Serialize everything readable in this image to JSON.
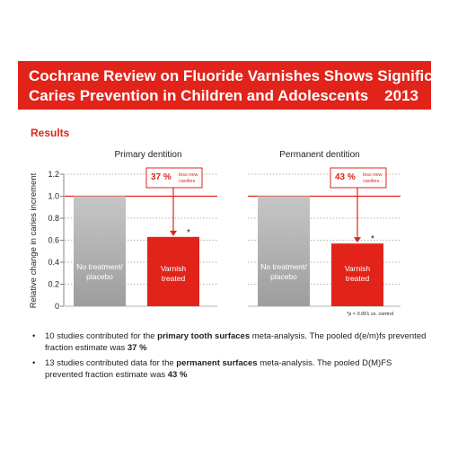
{
  "banner": {
    "title_line1": "Cochrane Review on Fluoride Varnishes Shows Significant",
    "title_line2": "Caries Prevention in Children and Adolescents",
    "year": "2013"
  },
  "section_title": "Results",
  "colors": {
    "accent": "#e2231a",
    "control_bar": "#9d9d9d",
    "text": "#222222"
  },
  "chart_data": [
    {
      "type": "bar",
      "title": "Primary dentition",
      "ylabel": "Relative change in caries increment",
      "ylim": [
        0,
        1.2
      ],
      "yticks": [
        "0",
        "0.2",
        "0.4",
        "0.6",
        "0.8",
        "1.0",
        "1.2"
      ],
      "categories": [
        "No treatment/\nplacebo",
        "Varnish\ntreated"
      ],
      "values": [
        1.0,
        0.63
      ],
      "significance": [
        "",
        "*"
      ],
      "annotation": {
        "pct": "37 %",
        "text": "less new\ncavities"
      },
      "grid": true
    },
    {
      "type": "bar",
      "title": "Permanent dentition",
      "ylabel": "Relative change in caries increment",
      "ylim": [
        0,
        1.2
      ],
      "yticks": [
        "0",
        "0.2",
        "0.4",
        "0.6",
        "0.8",
        "1.0",
        "1.2"
      ],
      "categories": [
        "No treatment/\nplacebo",
        "Varnish\ntreated"
      ],
      "values": [
        1.0,
        0.57
      ],
      "significance": [
        "",
        "*"
      ],
      "annotation": {
        "pct": "43 %",
        "text": "less new\ncavities"
      },
      "grid": true
    }
  ],
  "footnote": "*p < 0.001 vs. control",
  "bullets": [
    {
      "pre": "10 studies contributed for the ",
      "bold": "primary tooth surfaces",
      "mid": " meta-analysis. The pooled d(e/m)fs prevented fraction estimate was ",
      "value": "37 %"
    },
    {
      "pre": "13 studies contributed data for the ",
      "bold": "permanent surfaces",
      "mid": " meta-analysis. The pooled D(M)FS prevented fraction estimate was ",
      "value": "43 %"
    }
  ]
}
